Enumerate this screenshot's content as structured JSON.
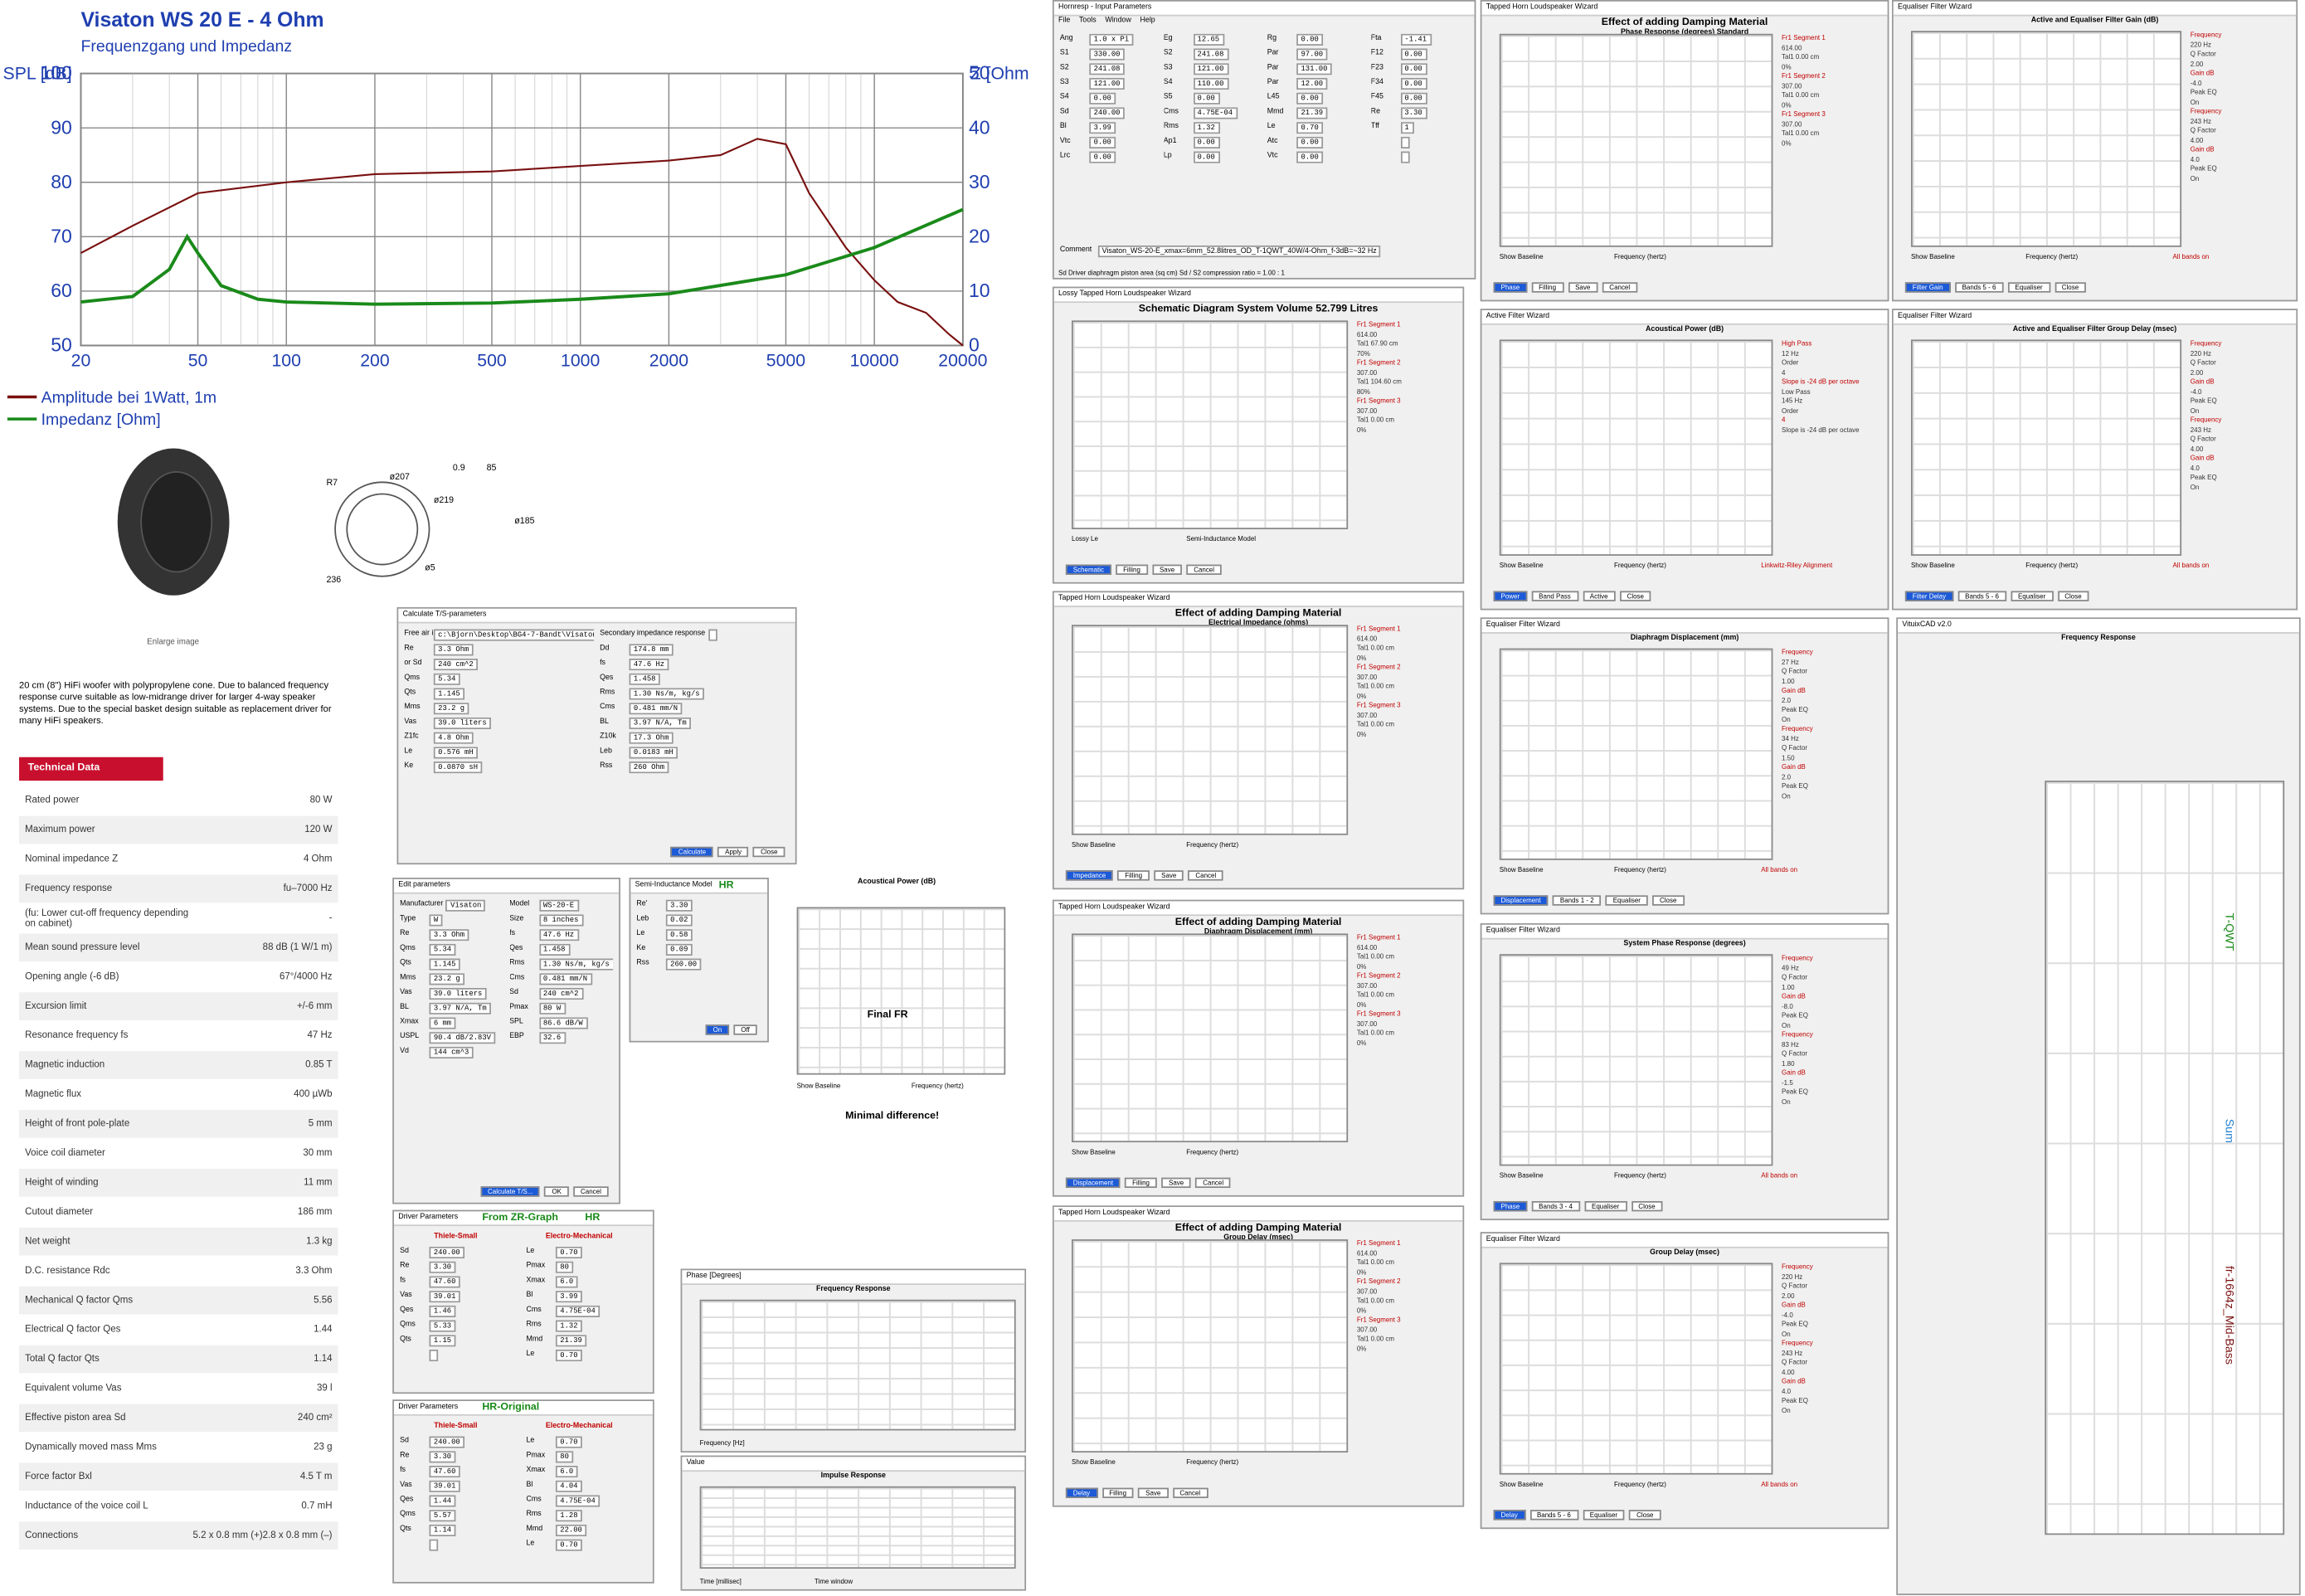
{
  "chart_data": {
    "type": "line",
    "title": "Visaton WS 20 E - 4 Ohm",
    "subtitle": "Frequenzgang und Impedanz",
    "y_label": "SPL [dB]",
    "y2_label": "Z [Ohm]",
    "log_x": true,
    "grid": true,
    "xlim": [
      20,
      20000
    ],
    "xticks": [
      20,
      50,
      100,
      200,
      500,
      1000,
      2000,
      5000,
      10000,
      20000
    ],
    "ylim": [
      50,
      100
    ],
    "yticks": [
      50,
      60,
      70,
      80,
      90,
      100
    ],
    "y2lim": [
      0,
      50
    ],
    "y2ticks": [
      0,
      10,
      20,
      30,
      40,
      50
    ],
    "legend": "bottom-left",
    "series": [
      {
        "name": "Amplitude bei 1Watt, 1m",
        "color": "#7a1010",
        "x": [
          20,
          30,
          50,
          100,
          200,
          500,
          1000,
          2000,
          3000,
          4000,
          5000,
          6000,
          8000,
          10000,
          12000,
          15000,
          18000,
          20000
        ],
        "values": [
          67,
          72,
          78,
          80,
          81.5,
          82,
          83,
          84,
          85,
          88,
          87,
          78,
          68,
          62,
          58,
          56,
          52,
          50
        ]
      },
      {
        "name": "Impedanz [Ohm]",
        "color": "#1a8a1a",
        "axis": "y2",
        "x": [
          20,
          30,
          40,
          46,
          50,
          60,
          80,
          100,
          200,
          500,
          1000,
          2000,
          5000,
          10000,
          20000
        ],
        "values": [
          8,
          9,
          14,
          20,
          17,
          11,
          8.5,
          8,
          7.6,
          7.8,
          8.5,
          9.5,
          13,
          18,
          25
        ]
      }
    ]
  },
  "product": {
    "enlarge": "Enlarge image",
    "description": "20 cm (8\") HiFi woofer with polypropylene cone. Due to balanced frequency response curve suitable as low-midrange driver for larger 4-way speaker systems. Due to the special basket design suitable as replacement driver for many HiFi speakers.",
    "drawing_labels": [
      "R7",
      "ø207",
      "ø219",
      "ø5",
      "236",
      "0.9",
      "85",
      "ø185"
    ]
  },
  "technical_data": {
    "title": "Technical Data",
    "rows": [
      [
        "Rated power",
        "80 W"
      ],
      [
        "Maximum power",
        "120 W"
      ],
      [
        "Nominal impedance Z",
        "4 Ohm"
      ],
      [
        "Frequency response",
        "fu–7000 Hz"
      ],
      [
        "(fu: Lower cut-off frequency depending on cabinet)",
        "-"
      ],
      [
        "Mean sound pressure level",
        "88 dB (1 W/1 m)"
      ],
      [
        "Opening angle (-6 dB)",
        "67°/4000 Hz"
      ],
      [
        "Excursion limit",
        "+/-6 mm"
      ],
      [
        "Resonance frequency fs",
        "47 Hz"
      ],
      [
        "Magnetic induction",
        "0.85 T"
      ],
      [
        "Magnetic flux",
        "400 µWb"
      ],
      [
        "Height of front pole-plate",
        "5 mm"
      ],
      [
        "Voice coil diameter",
        "30 mm"
      ],
      [
        "Height of winding",
        "11 mm"
      ],
      [
        "Cutout diameter",
        "186 mm"
      ],
      [
        "Net weight",
        "1.3 kg"
      ],
      [
        "D.C. resistance Rdc",
        "3.3 Ohm"
      ],
      [
        "Mechanical Q factor Qms",
        "5.56"
      ],
      [
        "Electrical Q factor Qes",
        "1.44"
      ],
      [
        "Total Q factor Qts",
        "1.14"
      ],
      [
        "Equivalent volume Vas",
        "39 l"
      ],
      [
        "Effective piston area Sd",
        "240 cm²"
      ],
      [
        "Dynamically moved mass Mms",
        "23 g"
      ],
      [
        "Force factor Bxl",
        "4.5 T m"
      ],
      [
        "Inductance of the voice coil L",
        "0.7 mH"
      ],
      [
        "Connections",
        "5.2 x 0.8 mm (+)2.8 x 0.8 mm (–)"
      ]
    ]
  },
  "windows": [
    {
      "title": "Hornresp - Input Parameters",
      "menu": [
        "File",
        "Tools",
        "Window",
        "Help"
      ],
      "fields": [
        [
          "Ang",
          "1.0 x Pi"
        ],
        [
          "Eg",
          "12.65"
        ],
        [
          "Rg",
          "0.00"
        ],
        [
          "Fta",
          "-1.41"
        ],
        [
          "S1",
          "330.00"
        ],
        [
          "S2",
          "241.08"
        ],
        [
          "Par",
          "97.00"
        ],
        [
          "F12",
          "0.00"
        ],
        [
          "S2",
          "241.08"
        ],
        [
          "S3",
          "121.00"
        ],
        [
          "Par",
          "131.00"
        ],
        [
          "F23",
          "0.00"
        ],
        [
          "S3",
          "121.00"
        ],
        [
          "S4",
          "110.00"
        ],
        [
          "Par",
          "12.00"
        ],
        [
          "F34",
          "0.00"
        ],
        [
          "S4",
          "0.00"
        ],
        [
          "S5",
          "0.00"
        ],
        [
          "L45",
          "0.00"
        ],
        [
          "F45",
          "0.00"
        ],
        [
          "Sd",
          "240.00"
        ],
        [
          "Cms",
          "4.75E-04"
        ],
        [
          "Mmd",
          "21.39"
        ],
        [
          "Re",
          "3.30"
        ],
        [
          "Bl",
          "3.99"
        ],
        [
          "Rms",
          "1.32"
        ],
        [
          "Le",
          "0.70"
        ],
        [
          "Tff",
          "1"
        ],
        [
          "Vtc",
          "0.00"
        ],
        [
          "Ap1",
          "0.00"
        ],
        [
          "Atc",
          "0.00"
        ],
        [
          "",
          ""
        ],
        [
          "Lrc",
          "0.00"
        ],
        [
          "Lp",
          "0.00"
        ],
        [
          "Vtc",
          "0.00"
        ],
        [
          "",
          ""
        ]
      ],
      "comment": [
        "Comment",
        "Visaton_WS-20-E_xmax=6mm_52.8litres_OD_T-1QWT_40W/4-Ohm_f-3dB=~32 Hz"
      ],
      "status": "Sd  Driver diaphragm piston area (sq cm)    Sd / S2 compression ratio = 1.00 : 1"
    },
    {
      "title": "Lossy Tapped Horn Loudspeaker Wizard",
      "heading": "Schematic Diagram   System Volume 52.799 Litres",
      "side": [
        "Fr1  Segment 1",
        "614.00",
        "Tal1  67.90 cm",
        "70%",
        "Fr1  Segment 2",
        "307.00",
        "Tal1  104.60 cm",
        "80%",
        "Fr1  Segment 3",
        "307.00",
        "Tal1  0.00 cm",
        "0%"
      ],
      "footer": [
        "Lossy Le",
        "Semi-Inductance Model"
      ],
      "controls": [
        "Schematic",
        "Filling",
        "Save",
        "Cancel"
      ]
    },
    {
      "title": "Tapped Horn Loudspeaker Wizard",
      "heading": "Effect of adding Damping Material",
      "sub": "Electrical Impedance (ohms)",
      "side": [
        "Fr1  Segment 1",
        "614.00",
        "Tal1  0.00 cm",
        "0%",
        "Fr1  Segment 2",
        "307.00",
        "Tal1  0.00 cm",
        "0%",
        "Fr1  Segment 3",
        "307.00",
        "Tal1  0.00 cm",
        "0%"
      ],
      "footer": [
        "Show Baseline",
        "Frequency (hertz)"
      ],
      "controls": [
        "Impedance",
        "Filling",
        "Save",
        "Cancel"
      ]
    },
    {
      "title": "Tapped Horn Loudspeaker Wizard",
      "heading": "Effect of adding Damping Material",
      "sub": "Diaphragm Displacement (mm)",
      "side": [
        "Fr1  Segment 1",
        "614.00",
        "Tal1  0.00 cm",
        "0%",
        "Fr1  Segment 2",
        "307.00",
        "Tal1  0.00 cm",
        "0%",
        "Fr1  Segment 3",
        "307.00",
        "Tal1  0.00 cm",
        "0%"
      ],
      "footer": [
        "Show Baseline",
        "Frequency (hertz)"
      ],
      "controls": [
        "Displacement",
        "Filling",
        "Save",
        "Cancel"
      ]
    },
    {
      "title": "Tapped Horn Loudspeaker Wizard",
      "heading": "Effect of adding Damping Material",
      "sub": "Group Delay (msec)",
      "side": [
        "Fr1  Segment 1",
        "614.00",
        "Tal1  0.00 cm",
        "0%",
        "Fr1  Segment 2",
        "307.00",
        "Tal1  0.00 cm",
        "0%",
        "Fr1  Segment 3",
        "307.00",
        "Tal1  0.00 cm",
        "0%"
      ],
      "footer": [
        "Show Baseline",
        "Frequency (hertz)"
      ],
      "controls": [
        "Delay",
        "Filling",
        "Save",
        "Cancel"
      ]
    },
    {
      "title": "Tapped Horn Loudspeaker Wizard",
      "heading": "Effect of adding Damping Material",
      "sub": "Phase Response (degrees)   Standard",
      "side": [
        "Fr1  Segment 1",
        "614.00",
        "Tal1  0.00 cm",
        "0%",
        "Fr1  Segment 2",
        "307.00",
        "Tal1  0.00 cm",
        "0%",
        "Fr1  Segment 3",
        "307.00",
        "Tal1  0.00 cm",
        "0%"
      ],
      "footer": [
        "Show Baseline",
        "Frequency (hertz)"
      ],
      "controls": [
        "Phase",
        "Filling",
        "Save",
        "Cancel"
      ]
    },
    {
      "title": "Active Filter Wizard",
      "sub": "Acoustical Power (dB)",
      "side": [
        "High Pass",
        "12 Hz",
        "Order",
        "4",
        "Slope is -24 dB per octave",
        "Low Pass",
        "145 Hz",
        "Order",
        "4",
        "Slope is -24 dB per octave"
      ],
      "footer": [
        "Show Baseline",
        "Frequency (hertz)",
        "Linkwitz-Riley Alignment"
      ],
      "controls": [
        "Power",
        "Band Pass",
        "Active",
        "Close"
      ]
    },
    {
      "title": "Equaliser Filter Wizard",
      "sub": "Diaphragm Displacement (mm)",
      "side": [
        "Frequency",
        "27 Hz",
        "Q Factor",
        "1.00",
        "Gain  dB",
        "2.0",
        "Peak EQ",
        "On",
        "Frequency",
        "34 Hz",
        "Q Factor",
        "1.50",
        "Gain  dB",
        "2.0",
        "Peak EQ",
        "On"
      ],
      "footer": [
        "Show Baseline",
        "Frequency (hertz)",
        "All bands on"
      ],
      "controls": [
        "Displacement",
        "Bands 1 - 2",
        "Equaliser",
        "Close"
      ]
    },
    {
      "title": "Equaliser Filter Wizard",
      "sub": "System Phase Response (degrees)",
      "side": [
        "Frequency",
        "49 Hz",
        "Q Factor",
        "1.00",
        "Gain  dB",
        "-8.0",
        "Peak EQ",
        "On",
        "Frequency",
        "83 Hz",
        "Q Factor",
        "1.80",
        "Gain  dB",
        "-1.5",
        "Peak EQ",
        "On"
      ],
      "footer": [
        "Show Baseline",
        "Frequency (hertz)",
        "All bands on"
      ],
      "controls": [
        "Phase",
        "Bands 3 - 4",
        "Equaliser",
        "Close"
      ]
    },
    {
      "title": "Equaliser Filter Wizard",
      "sub": "Group Delay (msec)",
      "side": [
        "Frequency",
        "220 Hz",
        "Q Factor",
        "2.00",
        "Gain  dB",
        "-4.0",
        "Peak EQ",
        "On",
        "Frequency",
        "243 Hz",
        "Q Factor",
        "4.00",
        "Gain  dB",
        "4.0",
        "Peak EQ",
        "On"
      ],
      "footer": [
        "Show Baseline",
        "Frequency (hertz)",
        "All bands on"
      ],
      "controls": [
        "Delay",
        "Bands 5 - 6",
        "Equaliser",
        "Close"
      ]
    },
    {
      "title": "Equaliser Filter Wizard",
      "sub": "Active and Equaliser Filter Gain (dB)",
      "side": [
        "Frequency",
        "220 Hz",
        "Q Factor",
        "2.00",
        "Gain  dB",
        "-4.0",
        "Peak EQ",
        "On",
        "Frequency",
        "243 Hz",
        "Q Factor",
        "4.00",
        "Gain  dB",
        "4.0",
        "Peak EQ",
        "On"
      ],
      "footer": [
        "Show Baseline",
        "Frequency (hertz)",
        "All bands on"
      ],
      "controls": [
        "Filter Gain",
        "Bands 5 - 6",
        "Equaliser",
        "Close"
      ]
    },
    {
      "title": "Equaliser Filter Wizard",
      "sub": "Active and Equaliser Filter Group Delay (msec)",
      "side": [
        "Frequency",
        "220 Hz",
        "Q Factor",
        "2.00",
        "Gain  dB",
        "-4.0",
        "Peak EQ",
        "On",
        "Frequency",
        "243 Hz",
        "Q Factor",
        "4.00",
        "Gain  dB",
        "4.0",
        "Peak EQ",
        "On"
      ],
      "footer": [
        "Show Baseline",
        "Frequency (hertz)",
        "All bands on"
      ],
      "controls": [
        "Filter Delay",
        "Bands 5 - 6",
        "Equaliser",
        "Close"
      ]
    },
    {
      "title": "Calculate T/S-parameters",
      "fields": [
        [
          "Free air impedance response",
          "c:\\Bjorn\\Desktop\\BG4-7-Bandt\\Visaton_WS-20-E_ZR.txt"
        ],
        [
          "Secondary impedance response",
          ""
        ],
        [
          "Re",
          "3.3 Ohm"
        ],
        [
          "Dd",
          "174.8 mm"
        ],
        [
          "or Sd",
          "240 cm^2"
        ],
        [
          "fs",
          "47.6 Hz"
        ],
        [
          "Qms",
          "5.34"
        ],
        [
          "Qes",
          "1.458"
        ],
        [
          "Qts",
          "1.145"
        ],
        [
          "Rms",
          "1.30 Ns/m, kg/s"
        ],
        [
          "Mms",
          "23.2 g"
        ],
        [
          "Cms",
          "0.481 mm/N"
        ],
        [
          "Vas",
          "39.0 liters"
        ],
        [
          "BL",
          "3.97 N/A, Tm"
        ],
        [
          "Z1fc",
          "4.8 Ohm"
        ],
        [
          "Z10k",
          "17.3 Ohm"
        ],
        [
          "Le",
          "0.576 mH"
        ],
        [
          "Leb",
          "0.0183 mH"
        ],
        [
          "Ke",
          "0.0870 sH"
        ],
        [
          "Rss",
          "260 Ohm"
        ]
      ],
      "controls": [
        "Calculate",
        "Apply",
        "Close"
      ]
    },
    {
      "title": "Edit parameters",
      "fields": [
        [
          "Manufacturer",
          "Visaton"
        ],
        [
          "Model",
          "WS-20-E"
        ],
        [
          "Type",
          "W"
        ],
        [
          "Size",
          "8 inches"
        ],
        [
          "Re",
          "3.3 Ohm"
        ],
        [
          "fs",
          "47.6 Hz"
        ],
        [
          "Qms",
          "5.34"
        ],
        [
          "Qes",
          "1.458"
        ],
        [
          "Qts",
          "1.145"
        ],
        [
          "Rms",
          "1.30 Ns/m, kg/s"
        ],
        [
          "Mms",
          "23.2 g"
        ],
        [
          "Cms",
          "0.481 mm/N"
        ],
        [
          "Vas",
          "39.0 liters"
        ],
        [
          "Sd",
          "240 cm^2"
        ],
        [
          "BL",
          "3.97 N/A, Tm"
        ],
        [
          "Pmax",
          "80 W"
        ],
        [
          "Xmax",
          "6 mm"
        ],
        [
          "SPL",
          "86.6 dB/W"
        ],
        [
          "USPL",
          "90.4 dB/2.83V"
        ],
        [
          "EBP",
          "32.6"
        ],
        [
          "Vd",
          "144 cm^3"
        ]
      ],
      "controls": [
        "Calculate T/S...",
        "OK",
        "Cancel"
      ]
    },
    {
      "title": "Semi-Inductance Model",
      "mark": "HR",
      "fields": [
        [
          "Re'",
          "3.30"
        ],
        [
          "Leb",
          "0.02"
        ],
        [
          "Le",
          "0.58"
        ],
        [
          "Ke",
          "0.09"
        ],
        [
          "Rss",
          "260.00"
        ]
      ],
      "controls": [
        "On",
        "Off"
      ]
    },
    {
      "sub": "Acoustical Power (dB)",
      "note": "Final FR",
      "footer": [
        "Show Baseline",
        "Frequency (hertz)"
      ],
      "caption": "Minimal difference!"
    },
    {
      "title": "Driver Parameters",
      "mark": "From ZR-Graph",
      "mark2": "HR",
      "cols": [
        "Thiele-Small",
        "Electro-Mechanical"
      ],
      "fields": [
        [
          "Sd",
          "240.00"
        ],
        [
          "Le",
          "0.70"
        ],
        [
          "Re",
          "3.30"
        ],
        [
          "Pmax",
          "80"
        ],
        [
          "fs",
          "47.60"
        ],
        [
          "Xmax",
          "6.0"
        ],
        [
          "Vas",
          "39.01"
        ],
        [
          "Bl",
          "3.99"
        ],
        [
          "Qes",
          "1.46"
        ],
        [
          "Cms",
          "4.75E-04"
        ],
        [
          "Qms",
          "5.33"
        ],
        [
          "Rms",
          "1.32"
        ],
        [
          "Qts",
          "1.15"
        ],
        [
          "Mmd",
          "21.39"
        ],
        [
          "",
          ""
        ],
        [
          "Le",
          "0.70"
        ]
      ]
    },
    {
      "title": "Driver Parameters",
      "mark": "HR-Original",
      "cols": [
        "Thiele-Small",
        "Electro-Mechanical"
      ],
      "fields": [
        [
          "Sd",
          "240.00"
        ],
        [
          "Le",
          "0.70"
        ],
        [
          "Re",
          "3.30"
        ],
        [
          "Pmax",
          "80"
        ],
        [
          "fs",
          "47.60"
        ],
        [
          "Xmax",
          "6.0"
        ],
        [
          "Vas",
          "39.01"
        ],
        [
          "Bl",
          "4.04"
        ],
        [
          "Qes",
          "1.44"
        ],
        [
          "Cms",
          "4.75E-04"
        ],
        [
          "Qms",
          "5.57"
        ],
        [
          "Rms",
          "1.28"
        ],
        [
          "Qts",
          "1.14"
        ],
        [
          "Mmd",
          "22.00"
        ],
        [
          "",
          ""
        ],
        [
          "Le",
          "0.70"
        ]
      ]
    },
    {
      "title": "Phase [Degrees]",
      "sub": "Frequency Response",
      "footer": [
        "Frequency [Hz]"
      ]
    },
    {
      "title": "Value",
      "sub": "Impulse Response",
      "footer": [
        "Time [millisec]",
        "Time window"
      ]
    },
    {
      "title": "VituixCAD v2.0",
      "sub": "Frequency Response",
      "legend": [
        "T-QWT",
        "Sum",
        "fr-1664z_Mid-Bass"
      ]
    }
  ]
}
